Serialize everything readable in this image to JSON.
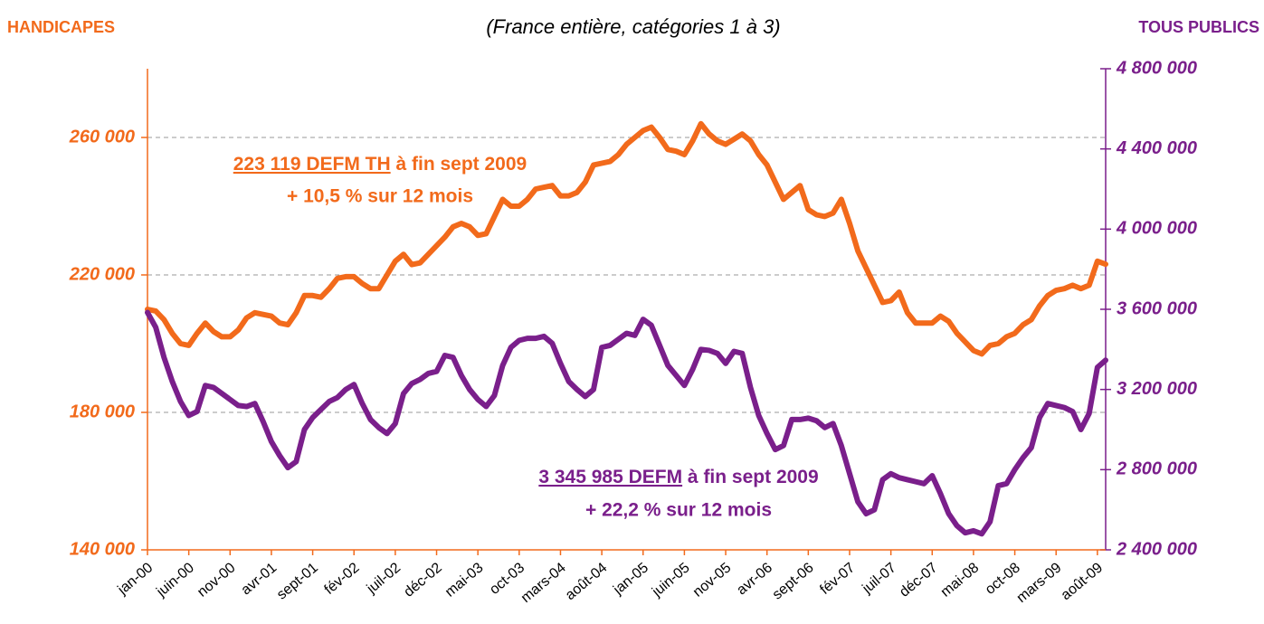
{
  "chart_data": {
    "type": "line",
    "subtitle": "(France entière, catégories 1 à 3)",
    "ylabel": "HANDICAPES",
    "y2label": "TOUS PUBLICS",
    "categories": [
      "jan-00",
      null,
      null,
      null,
      null,
      "juin-00",
      null,
      null,
      null,
      null,
      "nov-00",
      null,
      null,
      null,
      null,
      "avr-01",
      null,
      null,
      null,
      null,
      "sept-01",
      null,
      null,
      null,
      null,
      "fév-02",
      null,
      null,
      null,
      null,
      "juil-02",
      null,
      null,
      null,
      null,
      "déc-02",
      null,
      null,
      null,
      null,
      "mai-03",
      null,
      null,
      null,
      null,
      "oct-03",
      null,
      null,
      null,
      null,
      "mars-04",
      null,
      null,
      null,
      null,
      "août-04",
      null,
      null,
      null,
      null,
      "jan-05",
      null,
      null,
      null,
      null,
      "juin-05",
      null,
      null,
      null,
      null,
      "nov-05",
      null,
      null,
      null,
      null,
      "avr-06",
      null,
      null,
      null,
      null,
      "sept-06",
      null,
      null,
      null,
      null,
      "fév-07",
      null,
      null,
      null,
      null,
      "juil-07",
      null,
      null,
      null,
      null,
      "déc-07",
      null,
      null,
      null,
      null,
      "mai-08",
      null,
      null,
      null,
      null,
      "oct-08",
      null,
      null,
      null,
      null,
      "mars-09",
      null,
      null,
      null,
      null,
      "août-09",
      null
    ],
    "ylim": [
      140000,
      280000
    ],
    "yticks": [
      {
        "value": 140000,
        "label": "140 000"
      },
      {
        "value": 180000,
        "label": "180 000"
      },
      {
        "value": 220000,
        "label": "220 000"
      },
      {
        "value": 260000,
        "label": "260 000"
      }
    ],
    "y2lim": [
      2400000,
      4800000
    ],
    "y2ticks": [
      {
        "value": 2400000,
        "label": "2 400 000"
      },
      {
        "value": 2800000,
        "label": "2 800 000"
      },
      {
        "value": 3200000,
        "label": "3 200 000"
      },
      {
        "value": 3600000,
        "label": "3 600 000"
      },
      {
        "value": 4000000,
        "label": "4 000 000"
      },
      {
        "value": 4400000,
        "label": "4 400 000"
      },
      {
        "value": 4800000,
        "label": "4 800 000"
      }
    ],
    "grid": true,
    "series": [
      {
        "color": "#f26a1b",
        "values": [
          210000,
          209500,
          207000,
          203000,
          200000,
          199500,
          203000,
          206000,
          203500,
          202000,
          202000,
          204000,
          207500,
          209000,
          208500,
          208000,
          206000,
          205500,
          209000,
          214000,
          214000,
          213500,
          216000,
          219000,
          219500,
          219500,
          217500,
          216000,
          216000,
          220000,
          224000,
          226000,
          223000,
          223500,
          226000,
          228500,
          231000,
          234000,
          235000,
          234000,
          231500,
          232000,
          237000,
          242000,
          240000,
          240000,
          242000,
          245000,
          245500,
          246000,
          243000,
          243000,
          244000,
          247000,
          252000,
          252500,
          253000,
          255000,
          258000,
          260000,
          262000,
          263000,
          260000,
          256500,
          256000,
          255000,
          259000,
          264000,
          261000,
          259000,
          258000,
          259500,
          261000,
          259000,
          255000,
          252000,
          247000,
          242000,
          244000,
          246000,
          239000,
          237500,
          237000,
          238000,
          242000,
          235000,
          227000,
          222000,
          217000,
          212000,
          212500,
          215000,
          209000,
          206000,
          206000,
          206000,
          208000,
          206500,
          203000,
          200500,
          198000,
          197000,
          199500,
          200000,
          202000,
          203000,
          205500,
          207000,
          211000,
          214000,
          215500,
          216000,
          217000,
          216000,
          217000,
          224000,
          223119
        ]
      },
      {
        "color": "#7a1f8b",
        "axis": "y2",
        "values": [
          3584000,
          3510000,
          3360000,
          3240000,
          3140000,
          3070000,
          3090000,
          3220000,
          3210000,
          3180000,
          3150000,
          3120000,
          3115000,
          3130000,
          3040000,
          2940000,
          2870000,
          2810000,
          2840000,
          3000000,
          3060000,
          3100000,
          3140000,
          3160000,
          3200000,
          3225000,
          3130000,
          3050000,
          3010000,
          2980000,
          3030000,
          3180000,
          3230000,
          3250000,
          3280000,
          3290000,
          3370000,
          3360000,
          3270000,
          3200000,
          3150000,
          3115000,
          3170000,
          3320000,
          3410000,
          3445000,
          3455000,
          3455000,
          3465000,
          3430000,
          3330000,
          3240000,
          3200000,
          3165000,
          3200000,
          3410000,
          3420000,
          3450000,
          3480000,
          3470000,
          3550000,
          3520000,
          3420000,
          3320000,
          3270000,
          3220000,
          3300000,
          3400000,
          3395000,
          3380000,
          3330000,
          3390000,
          3380000,
          3210000,
          3070000,
          2980000,
          2900000,
          2920000,
          3050000,
          3050000,
          3057000,
          3044000,
          3010000,
          3030000,
          2920000,
          2780000,
          2640000,
          2580000,
          2600000,
          2750000,
          2780000,
          2760000,
          2750000,
          2740000,
          2730000,
          2770000,
          2680000,
          2580000,
          2520000,
          2485000,
          2495000,
          2480000,
          2540000,
          2720000,
          2730000,
          2800000,
          2860000,
          2910000,
          3060000,
          3130000,
          3120000,
          3110000,
          3090000,
          3000000,
          3080000,
          3310000,
          3345985
        ]
      }
    ],
    "annotations": [
      {
        "underlined": "223 119 DEFM TH",
        "text": " à fin sept 2009",
        "line2": "+ 10,5 % sur 12 mois"
      },
      {
        "underlined": "3 345 985 DEFM",
        "text": " à fin sept 2009",
        "line2": "+ 22,2 % sur 12 mois"
      }
    ]
  }
}
